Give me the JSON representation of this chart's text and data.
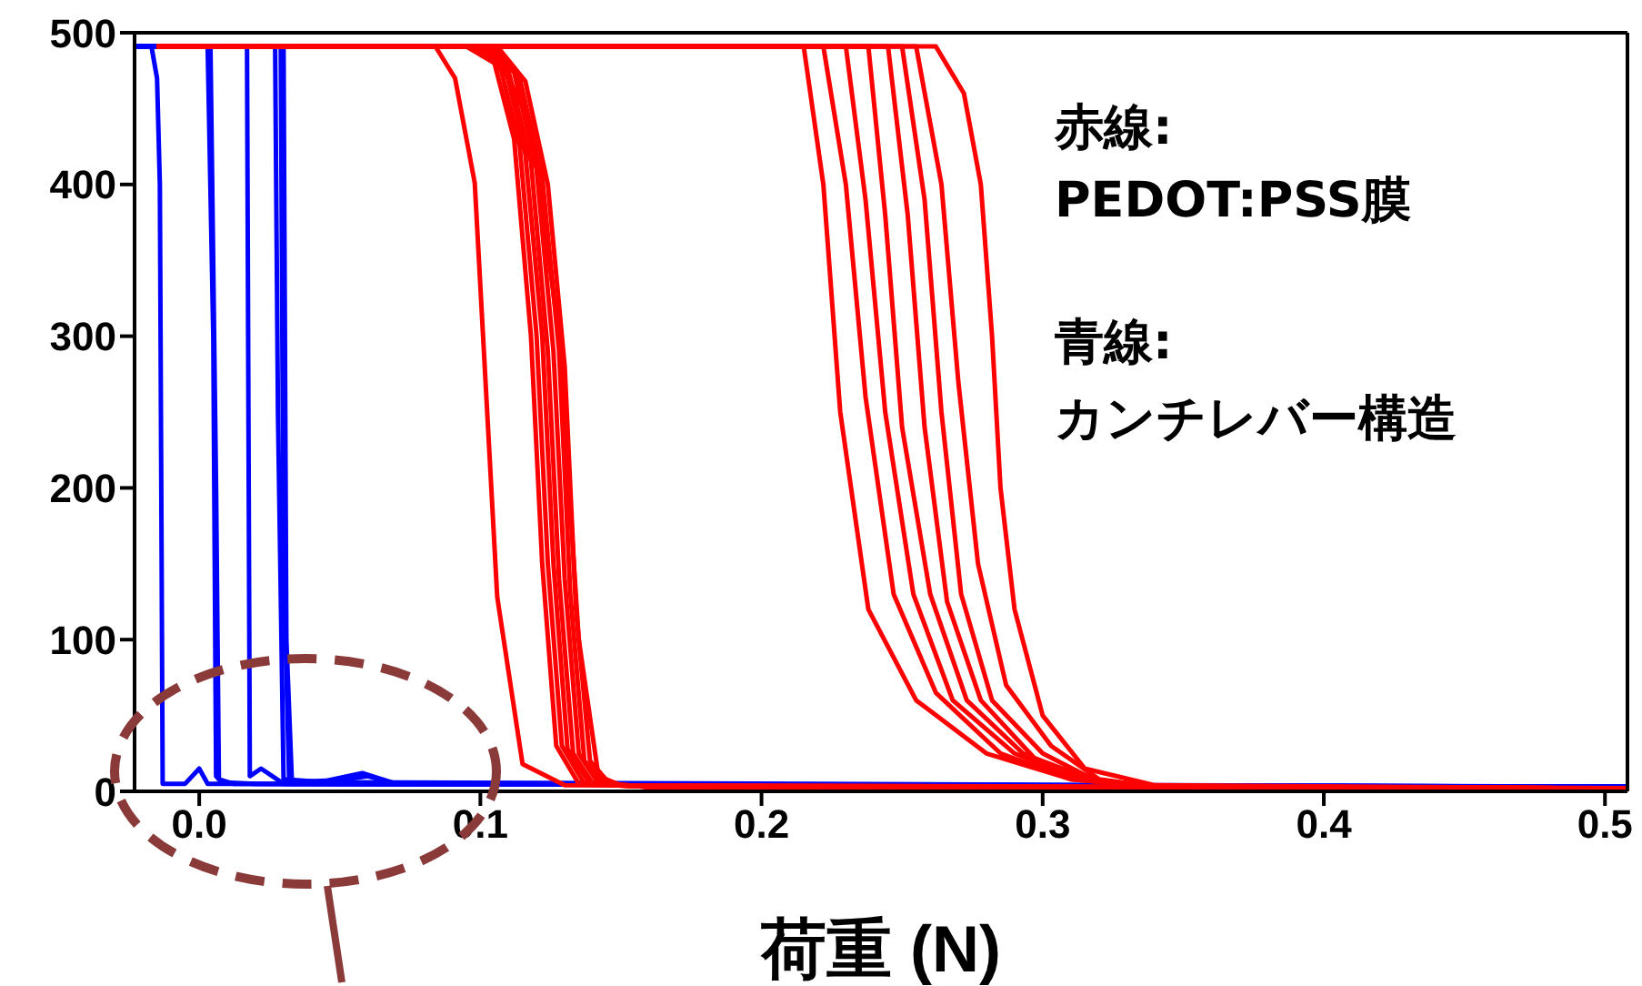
{
  "chart_data": {
    "type": "line",
    "xlabel": "荷重 (N)",
    "xlim": [
      -0.023,
      0.508
    ],
    "ylim": [
      0,
      500
    ],
    "xticks": [
      {
        "value": 0,
        "label": "0.0"
      },
      {
        "value": 0.1,
        "label": "0.1"
      },
      {
        "value": 0.2,
        "label": "0.2"
      },
      {
        "value": 0.3,
        "label": "0.3"
      },
      {
        "value": 0.4,
        "label": "0.4"
      },
      {
        "value": 0.5,
        "label": "0.5"
      }
    ],
    "yticks": [
      0,
      100,
      200,
      300,
      400,
      500
    ],
    "marker": "none",
    "line_style": "solid",
    "annotations": [
      "赤線:",
      "PEDOT:PSS膜",
      "青線:",
      "カンチレバー構造"
    ],
    "series": [
      {
        "color": "#0000ff",
        "x": [
          -0.023,
          -0.017,
          -0.015,
          -0.014,
          -0.013,
          -0.005,
          0,
          0.003,
          0.508
        ],
        "values": [
          491,
          491,
          470,
          400,
          5,
          5,
          15,
          5,
          3
        ]
      },
      {
        "color": "#0000ff",
        "x": [
          -0.023,
          0.003,
          0.005,
          0.006,
          0.008,
          0.02,
          0.508
        ],
        "values": [
          491,
          491,
          300,
          10,
          6,
          5,
          3
        ]
      },
      {
        "color": "#0000ff",
        "x": [
          -0.023,
          0.004,
          0.006,
          0.007,
          0.012,
          0.508
        ],
        "values": [
          491,
          491,
          200,
          8,
          5,
          3
        ]
      },
      {
        "color": "#0000ff",
        "x": [
          -0.023,
          0.017,
          0.018,
          0.022,
          0.03,
          0.508
        ],
        "values": [
          491,
          491,
          10,
          15,
          5,
          3
        ]
      },
      {
        "color": "#0000ff",
        "x": [
          -0.023,
          0.027,
          0.028,
          0.03,
          0.045,
          0.06,
          0.07,
          0.508
        ],
        "values": [
          491,
          491,
          250,
          8,
          6,
          10,
          5,
          3
        ]
      },
      {
        "color": "#0000ff",
        "x": [
          -0.023,
          0.029,
          0.03,
          0.032,
          0.045,
          0.058,
          0.07,
          0.508
        ],
        "values": [
          491,
          491,
          150,
          6,
          7,
          12,
          5,
          3
        ]
      },
      {
        "color": "#0000ff",
        "x": [
          -0.023,
          0.03,
          0.031,
          0.033,
          0.05,
          0.508
        ],
        "values": [
          491,
          491,
          100,
          5,
          6,
          3
        ]
      },
      {
        "color": "#ff0000",
        "x": [
          -0.015,
          0.084,
          0.091,
          0.098,
          0.106,
          0.115,
          0.13,
          0.508
        ],
        "values": [
          491,
          491,
          470,
          401,
          128,
          18,
          4,
          2
        ]
      },
      {
        "color": "#ff0000",
        "x": [
          -0.015,
          0.095,
          0.105,
          0.112,
          0.118,
          0.122,
          0.127,
          0.135,
          0.16,
          0.508
        ],
        "values": [
          491,
          491,
          480,
          430,
          300,
          150,
          30,
          5,
          3,
          2
        ]
      },
      {
        "color": "#ff0000",
        "x": [
          -0.015,
          0.097,
          0.107,
          0.114,
          0.12,
          0.124,
          0.129,
          0.137,
          0.16,
          0.508
        ],
        "values": [
          491,
          491,
          478,
          425,
          300,
          150,
          30,
          5,
          3,
          2
        ]
      },
      {
        "color": "#ff0000",
        "x": [
          -0.015,
          0.099,
          0.109,
          0.116,
          0.122,
          0.126,
          0.131,
          0.139,
          0.16,
          0.508
        ],
        "values": [
          491,
          491,
          476,
          420,
          300,
          150,
          28,
          5,
          3,
          2
        ]
      },
      {
        "color": "#ff0000",
        "x": [
          -0.015,
          0.1,
          0.11,
          0.118,
          0.124,
          0.128,
          0.133,
          0.14,
          0.16,
          0.508
        ],
        "values": [
          491,
          491,
          475,
          415,
          290,
          140,
          25,
          5,
          3,
          2
        ]
      },
      {
        "color": "#ff0000",
        "x": [
          -0.015,
          0.102,
          0.112,
          0.12,
          0.126,
          0.13,
          0.135,
          0.142,
          0.16,
          0.508
        ],
        "values": [
          491,
          491,
          474,
          410,
          290,
          140,
          25,
          5,
          3,
          2
        ]
      },
      {
        "color": "#ff0000",
        "x": [
          -0.015,
          0.104,
          0.114,
          0.122,
          0.128,
          0.132,
          0.137,
          0.144,
          0.16,
          0.508
        ],
        "values": [
          491,
          491,
          470,
          405,
          290,
          130,
          20,
          5,
          3,
          2
        ]
      },
      {
        "color": "#ff0000",
        "x": [
          -0.015,
          0.106,
          0.116,
          0.124,
          0.13,
          0.134,
          0.139,
          0.146,
          0.16,
          0.508
        ],
        "values": [
          491,
          491,
          468,
          400,
          280,
          120,
          20,
          5,
          3,
          2
        ]
      },
      {
        "color": "#ff0000",
        "x": [
          -0.015,
          0.1,
          0.11,
          0.118,
          0.128,
          0.135,
          0.142,
          0.15,
          0.508
        ],
        "values": [
          491,
          491,
          470,
          440,
          300,
          100,
          10,
          4,
          2
        ]
      },
      {
        "color": "#ff0000",
        "x": [
          -0.015,
          0.215,
          0.222,
          0.228,
          0.238,
          0.255,
          0.28,
          0.31,
          0.34,
          0.508
        ],
        "values": [
          491,
          491,
          400,
          250,
          120,
          60,
          25,
          8,
          3,
          2
        ]
      },
      {
        "color": "#ff0000",
        "x": [
          -0.015,
          0.222,
          0.23,
          0.237,
          0.247,
          0.262,
          0.285,
          0.31,
          0.34,
          0.508
        ],
        "values": [
          491,
          491,
          400,
          260,
          130,
          65,
          25,
          8,
          3,
          2
        ]
      },
      {
        "color": "#ff0000",
        "x": [
          -0.015,
          0.23,
          0.237,
          0.244,
          0.254,
          0.268,
          0.29,
          0.312,
          0.34,
          0.508
        ],
        "values": [
          491,
          491,
          390,
          250,
          130,
          60,
          25,
          8,
          3,
          2
        ]
      },
      {
        "color": "#ff0000",
        "x": [
          -0.015,
          0.238,
          0.244,
          0.25,
          0.26,
          0.273,
          0.293,
          0.315,
          0.34,
          0.508
        ],
        "values": [
          491,
          491,
          380,
          240,
          130,
          60,
          25,
          8,
          3,
          2
        ]
      },
      {
        "color": "#ff0000",
        "x": [
          -0.015,
          0.245,
          0.252,
          0.258,
          0.266,
          0.278,
          0.297,
          0.317,
          0.34,
          0.508
        ],
        "values": [
          491,
          491,
          380,
          240,
          125,
          60,
          22,
          8,
          3,
          2
        ]
      },
      {
        "color": "#ff0000",
        "x": [
          -0.015,
          0.25,
          0.258,
          0.264,
          0.271,
          0.282,
          0.3,
          0.318,
          0.34,
          0.508
        ],
        "values": [
          491,
          491,
          390,
          250,
          130,
          60,
          25,
          8,
          3,
          2
        ]
      },
      {
        "color": "#ff0000",
        "x": [
          -0.015,
          0.255,
          0.264,
          0.27,
          0.277,
          0.287,
          0.303,
          0.32,
          0.34,
          0.508
        ],
        "values": [
          491,
          491,
          400,
          270,
          150,
          70,
          30,
          8,
          3,
          2
        ]
      },
      {
        "color": "#ff0000",
        "x": [
          -0.015,
          0.262,
          0.272,
          0.278,
          0.282,
          0.285,
          0.29,
          0.3,
          0.315,
          0.34,
          0.508
        ],
        "values": [
          491,
          491,
          460,
          400,
          300,
          200,
          120,
          50,
          15,
          4,
          2
        ]
      }
    ]
  }
}
